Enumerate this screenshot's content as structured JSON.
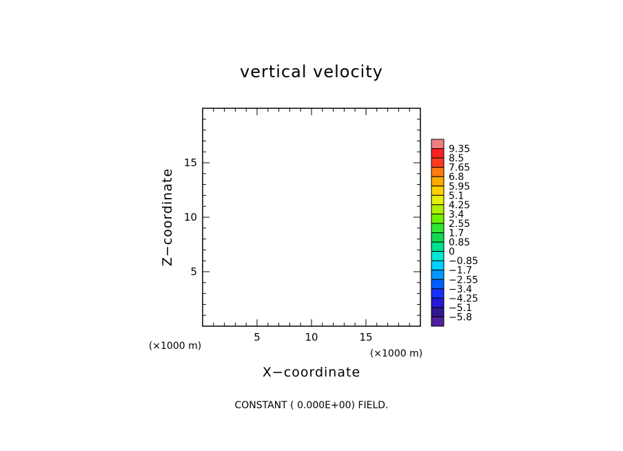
{
  "chart_data": {
    "type": "heatmap",
    "title": "vertical velocity",
    "xlabel": "X−coordinate",
    "ylabel": "Z−coordinate",
    "x_unit": "(×1000 m)",
    "y_unit": "(×1000 m)",
    "xlim": [
      0,
      20
    ],
    "ylim": [
      0,
      20
    ],
    "x_ticks": [
      "5",
      "10",
      "15"
    ],
    "y_ticks": [
      "5",
      "10",
      "15"
    ],
    "field_note": "CONSTANT ( 0.000E+00) FIELD.",
    "colorbar": {
      "levels": [
        "9.35",
        "8.5",
        "7.65",
        "6.8",
        "5.95",
        "5.1",
        "4.25",
        "3.4",
        "2.55",
        "1.7",
        "0.85",
        "0",
        "−0.85",
        "−1.7",
        "−2.55",
        "−3.4",
        "−4.25",
        "−5.1",
        "−5.8"
      ],
      "colors": [
        "#f08080",
        "#ff2020",
        "#ff3b1e",
        "#ff7a10",
        "#ffaa00",
        "#ffd000",
        "#e8f000",
        "#b0f000",
        "#6ef000",
        "#30e830",
        "#10d850",
        "#00e090",
        "#00e8d0",
        "#00d0ff",
        "#0098ff",
        "#0060ff",
        "#1830ff",
        "#2818d8",
        "#301890",
        "#5020a0"
      ]
    }
  }
}
